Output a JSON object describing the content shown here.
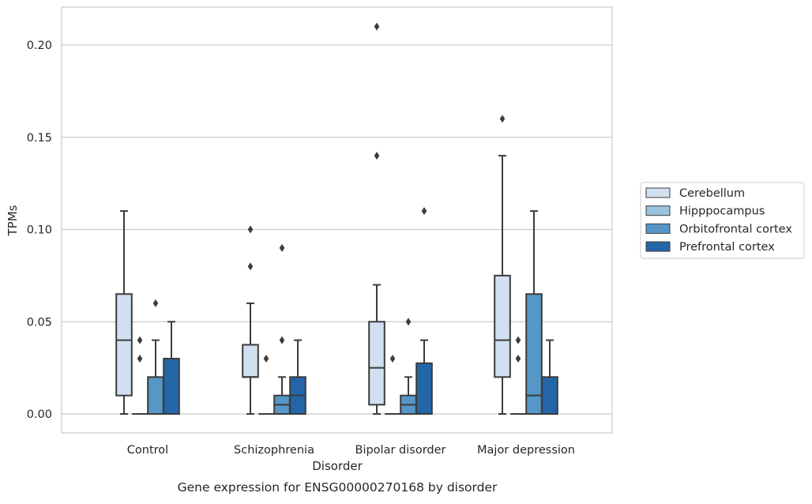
{
  "chart_data": {
    "type": "box",
    "xlabel": "Disorder",
    "ylabel": "TPMs",
    "caption": "Gene expression for ENSG00000270168 by disorder",
    "ylim": [
      -0.01,
      0.22
    ],
    "yticks": [
      0.0,
      0.05,
      0.1,
      0.15,
      0.2
    ],
    "ytick_labels": [
      "0.00",
      "0.05",
      "0.10",
      "0.15",
      "0.20"
    ],
    "grid": "horizontal",
    "legend_position": "right",
    "categories": [
      "Control",
      "Schizophrenia",
      "Bipolar disorder",
      "Major depression"
    ],
    "series": [
      {
        "name": "Cerebellum",
        "color": "#d0e0f0",
        "boxes": [
          {
            "whisker_low": 0.0,
            "q1": 0.01,
            "median": 0.04,
            "q3": 0.065,
            "whisker_high": 0.11,
            "outliers": []
          },
          {
            "whisker_low": 0.0,
            "q1": 0.02,
            "median": 0.02,
            "q3": 0.0375,
            "whisker_high": 0.06,
            "outliers": [
              0.08,
              0.1
            ]
          },
          {
            "whisker_low": 0.0,
            "q1": 0.005,
            "median": 0.025,
            "q3": 0.05,
            "whisker_high": 0.07,
            "outliers": [
              0.14,
              0.21
            ]
          },
          {
            "whisker_low": 0.0,
            "q1": 0.02,
            "median": 0.04,
            "q3": 0.075,
            "whisker_high": 0.14,
            "outliers": [
              0.16
            ]
          }
        ]
      },
      {
        "name": "Hipppocampus",
        "color": "#9ac3df",
        "boxes": [
          {
            "whisker_low": 0.0,
            "q1": 0.0,
            "median": 0.0,
            "q3": 0.0,
            "whisker_high": 0.0,
            "outliers": [
              0.03,
              0.04
            ]
          },
          {
            "whisker_low": 0.0,
            "q1": 0.0,
            "median": 0.0,
            "q3": 0.0,
            "whisker_high": 0.0,
            "outliers": [
              0.03
            ]
          },
          {
            "whisker_low": 0.0,
            "q1": 0.0,
            "median": 0.0,
            "q3": 0.0,
            "whisker_high": 0.0,
            "outliers": [
              0.03
            ]
          },
          {
            "whisker_low": 0.0,
            "q1": 0.0,
            "median": 0.0,
            "q3": 0.0,
            "whisker_high": 0.0,
            "outliers": [
              0.03,
              0.04
            ]
          }
        ]
      },
      {
        "name": "Orbitofrontal cortex",
        "color": "#5597c6",
        "boxes": [
          {
            "whisker_low": 0.0,
            "q1": 0.0,
            "median": 0.0,
            "q3": 0.02,
            "whisker_high": 0.04,
            "outliers": [
              0.06
            ]
          },
          {
            "whisker_low": 0.0,
            "q1": 0.0,
            "median": 0.005,
            "q3": 0.01,
            "whisker_high": 0.02,
            "outliers": [
              0.04,
              0.09
            ]
          },
          {
            "whisker_low": 0.0,
            "q1": 0.0,
            "median": 0.005,
            "q3": 0.01,
            "whisker_high": 0.02,
            "outliers": [
              0.05
            ]
          },
          {
            "whisker_low": 0.0,
            "q1": 0.0,
            "median": 0.01,
            "q3": 0.065,
            "whisker_high": 0.11,
            "outliers": []
          }
        ]
      },
      {
        "name": "Prefrontal cortex",
        "color": "#2366a8",
        "boxes": [
          {
            "whisker_low": 0.0,
            "q1": 0.0,
            "median": 0.0,
            "q3": 0.03,
            "whisker_high": 0.05,
            "outliers": []
          },
          {
            "whisker_low": 0.0,
            "q1": 0.0,
            "median": 0.01,
            "q3": 0.02,
            "whisker_high": 0.04,
            "outliers": []
          },
          {
            "whisker_low": 0.0,
            "q1": 0.0,
            "median": 0.0,
            "q3": 0.0275,
            "whisker_high": 0.04,
            "outliers": [
              0.11
            ]
          },
          {
            "whisker_low": 0.0,
            "q1": 0.0,
            "median": 0.0,
            "q3": 0.02,
            "whisker_high": 0.04,
            "outliers": []
          }
        ]
      }
    ]
  }
}
